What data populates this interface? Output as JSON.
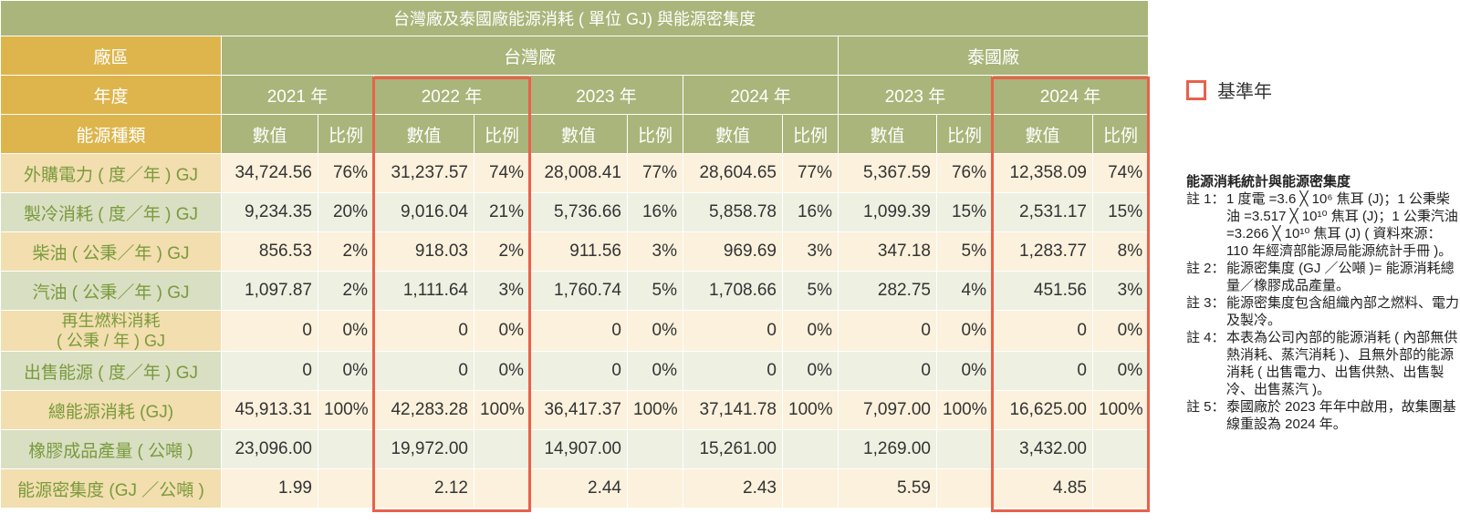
{
  "title": "台灣廠及泰國廠能源消耗 ( 單位 GJ) 與能源密集度",
  "header": {
    "plant_label": "廠區",
    "year_label": "年度",
    "type_label": "能源種類",
    "plants": [
      "台灣廠",
      "泰國廠"
    ],
    "years": [
      "2021 年",
      "2022 年",
      "2023 年",
      "2024 年",
      "2023 年",
      "2024 年"
    ],
    "value_label": "數值",
    "ratio_label": "比例"
  },
  "rows": [
    {
      "label": "外購電力 ( 度／年 ) GJ",
      "cells": [
        "34,724.56",
        "76%",
        "31,237.57",
        "74%",
        "28,008.41",
        "77%",
        "28,604.65",
        "77%",
        "5,367.59",
        "76%",
        "12,358.09",
        "74%"
      ]
    },
    {
      "label": "製冷消耗 ( 度／年 ) GJ",
      "cells": [
        "9,234.35",
        "20%",
        "9,016.04",
        "21%",
        "5,736.66",
        "16%",
        "5,858.78",
        "16%",
        "1,099.39",
        "15%",
        "2,531.17",
        "15%"
      ]
    },
    {
      "label": "柴油 ( 公秉／年 ) GJ",
      "cells": [
        "856.53",
        "2%",
        "918.03",
        "2%",
        "911.56",
        "3%",
        "969.69",
        "3%",
        "347.18",
        "5%",
        "1,283.77",
        "8%"
      ]
    },
    {
      "label": "汽油 ( 公秉／年 ) GJ",
      "cells": [
        "1,097.87",
        "2%",
        "1,111.64",
        "3%",
        "1,760.74",
        "5%",
        "1,708.66",
        "5%",
        "282.75",
        "4%",
        "451.56",
        "3%"
      ]
    },
    {
      "label": "再生燃料消耗",
      "label2": "( 公秉 / 年 ) GJ",
      "cells": [
        "0",
        "0%",
        "0",
        "0%",
        "0",
        "0%",
        "0",
        "0%",
        "0",
        "0%",
        "0",
        "0%"
      ]
    },
    {
      "label": "出售能源 ( 度／年 ) GJ",
      "cells": [
        "0",
        "0%",
        "0",
        "0%",
        "0",
        "0%",
        "0",
        "0%",
        "0",
        "0%",
        "0",
        "0%"
      ]
    },
    {
      "label": "總能源消耗 (GJ)",
      "cells": [
        "45,913.31",
        "100%",
        "42,283.28",
        "100%",
        "36,417.37",
        "100%",
        "37,141.78",
        "100%",
        "7,097.00",
        "100%",
        "16,625.00",
        "100%"
      ]
    },
    {
      "label": "橡膠成品產量 ( 公噸 )",
      "cells": [
        "23,096.00",
        "",
        "19,972.00",
        "",
        "14,907.00",
        "",
        "15,261.00",
        "",
        "1,269.00",
        "",
        "3,432.00",
        ""
      ]
    },
    {
      "label": "能源密集度 (GJ ／公噸 )",
      "cells": [
        "1.99",
        "",
        "2.12",
        "",
        "2.44",
        "",
        "2.43",
        "",
        "5.59",
        "",
        "4.85",
        ""
      ]
    }
  ],
  "legend": {
    "label": "基準年",
    "color": "#e8614c"
  },
  "notes": {
    "heading": "能源消耗統計與能源密集度",
    "items": [
      {
        "key": "註 1：",
        "text": "1 度電 =3.6 ╳ 10⁶ 焦耳 (J)；1 公秉柴油 =3.517 ╳ 10¹⁰ 焦耳 (J)；1 公秉汽油 =3.266 ╳ 10¹⁰ 焦耳 (J) ( 資料來源：110 年經濟部能源局能源統計手冊 )。"
      },
      {
        "key": "註 2：",
        "text": "能源密集度 (GJ ／公噸 )= 能源消耗總量／橡膠成品產量。"
      },
      {
        "key": "註 3：",
        "text": "能源密集度包含組織內部之燃料、電力及製冷。"
      },
      {
        "key": "註 4：",
        "text": "本表為公司內部的能源消耗 ( 內部無供熱消耗、蒸汽消耗 )、且無外部的能源消耗 ( 出售電力、出售供熱、出售製冷、出售蒸汽 )。"
      },
      {
        "key": "註 5：",
        "text": "泰國廠於 2023 年年中啟用，故集團基線重設為 2024 年。"
      }
    ]
  }
}
